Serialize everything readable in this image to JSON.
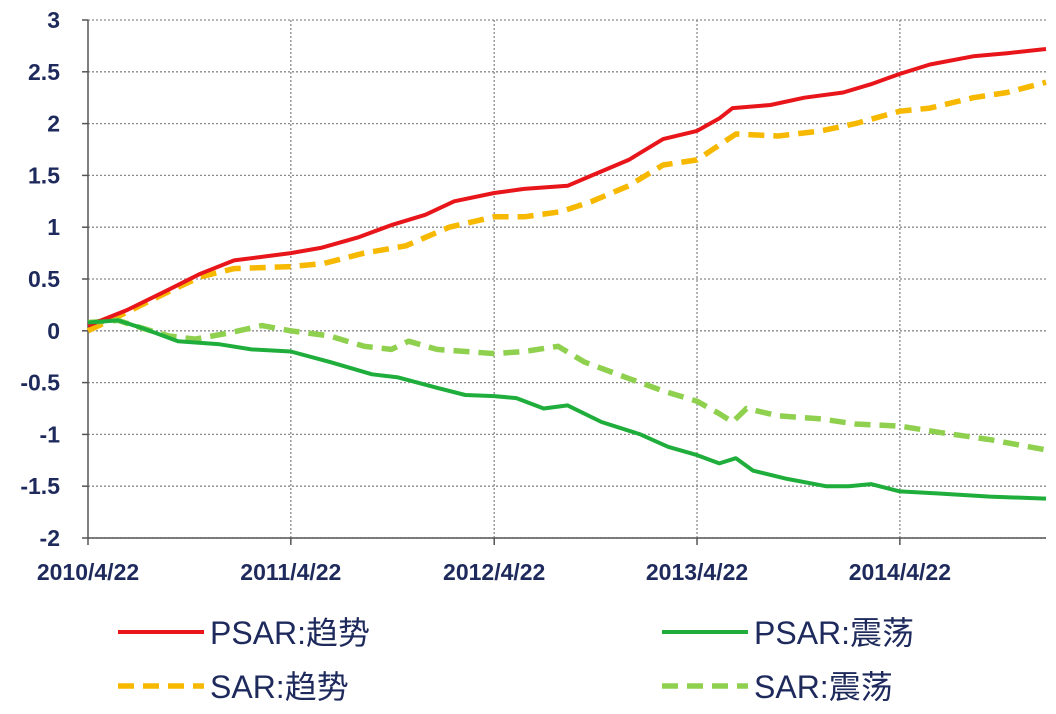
{
  "chart_data": {
    "type": "line",
    "title": "",
    "xlabel": "",
    "ylabel": "",
    "ylim": [
      -2,
      3
    ],
    "yticks": [
      "3",
      "2.5",
      "2",
      "1.5",
      "1",
      "0.5",
      "0",
      "-0.5",
      "-1",
      "-1.5",
      "-2"
    ],
    "xlim": [
      "2010-04-22",
      "2015-01-10"
    ],
    "xticks": [
      {
        "date": "2010-04-22",
        "label": "2010/4/22"
      },
      {
        "date": "2011-04-22",
        "label": "2011/4/22"
      },
      {
        "date": "2012-04-22",
        "label": "2012/4/22"
      },
      {
        "date": "2013-04-22",
        "label": "2013/4/22"
      },
      {
        "date": "2014-04-22",
        "label": "2014/4/22"
      }
    ],
    "grid": true,
    "legend_position": "bottom",
    "series": [
      {
        "name": "PSAR:趋势",
        "color": "#e8161b",
        "style": "solid",
        "points": [
          [
            "2010-04-22",
            0.05
          ],
          [
            "2010-07-01",
            0.2
          ],
          [
            "2010-09-15",
            0.4
          ],
          [
            "2010-11-10",
            0.55
          ],
          [
            "2011-01-10",
            0.68
          ],
          [
            "2011-04-22",
            0.75
          ],
          [
            "2011-06-15",
            0.8
          ],
          [
            "2011-08-20",
            0.9
          ],
          [
            "2011-10-20",
            1.02
          ],
          [
            "2011-12-20",
            1.12
          ],
          [
            "2012-02-10",
            1.25
          ],
          [
            "2012-04-22",
            1.33
          ],
          [
            "2012-06-15",
            1.37
          ],
          [
            "2012-09-01",
            1.4
          ],
          [
            "2012-10-15",
            1.5
          ],
          [
            "2012-12-20",
            1.65
          ],
          [
            "2013-02-20",
            1.85
          ],
          [
            "2013-04-22",
            1.93
          ],
          [
            "2013-06-01",
            2.05
          ],
          [
            "2013-06-25",
            2.15
          ],
          [
            "2013-09-01",
            2.18
          ],
          [
            "2013-11-01",
            2.25
          ],
          [
            "2014-01-10",
            2.3
          ],
          [
            "2014-03-01",
            2.38
          ],
          [
            "2014-04-22",
            2.48
          ],
          [
            "2014-06-15",
            2.57
          ],
          [
            "2014-09-01",
            2.65
          ],
          [
            "2014-11-01",
            2.68
          ],
          [
            "2015-01-10",
            2.72
          ]
        ]
      },
      {
        "name": "PSAR:震荡",
        "color": "#1fae3c",
        "style": "solid",
        "points": [
          [
            "2010-04-22",
            0.08
          ],
          [
            "2010-06-15",
            0.1
          ],
          [
            "2010-08-01",
            0.02
          ],
          [
            "2010-10-01",
            -0.1
          ],
          [
            "2010-12-15",
            -0.13
          ],
          [
            "2011-02-10",
            -0.18
          ],
          [
            "2011-04-22",
            -0.2
          ],
          [
            "2011-07-01",
            -0.3
          ],
          [
            "2011-09-15",
            -0.42
          ],
          [
            "2011-11-01",
            -0.45
          ],
          [
            "2012-01-10",
            -0.55
          ],
          [
            "2012-03-01",
            -0.62
          ],
          [
            "2012-04-22",
            -0.63
          ],
          [
            "2012-06-01",
            -0.65
          ],
          [
            "2012-07-20",
            -0.75
          ],
          [
            "2012-09-01",
            -0.72
          ],
          [
            "2012-11-01",
            -0.88
          ],
          [
            "2013-01-10",
            -1.0
          ],
          [
            "2013-03-01",
            -1.12
          ],
          [
            "2013-04-22",
            -1.2
          ],
          [
            "2013-06-01",
            -1.28
          ],
          [
            "2013-07-01",
            -1.23
          ],
          [
            "2013-08-01",
            -1.35
          ],
          [
            "2013-10-01",
            -1.43
          ],
          [
            "2013-12-10",
            -1.5
          ],
          [
            "2014-01-20",
            -1.5
          ],
          [
            "2014-03-01",
            -1.48
          ],
          [
            "2014-04-22",
            -1.55
          ],
          [
            "2014-07-01",
            -1.57
          ],
          [
            "2014-10-01",
            -1.6
          ],
          [
            "2015-01-10",
            -1.62
          ]
        ]
      },
      {
        "name": "SAR:趋势",
        "color": "#f7b900",
        "style": "dashed",
        "points": [
          [
            "2010-04-22",
            0.0
          ],
          [
            "2010-07-01",
            0.18
          ],
          [
            "2010-09-15",
            0.38
          ],
          [
            "2010-11-10",
            0.52
          ],
          [
            "2011-01-10",
            0.6
          ],
          [
            "2011-04-22",
            0.62
          ],
          [
            "2011-06-20",
            0.65
          ],
          [
            "2011-09-01",
            0.75
          ],
          [
            "2011-11-15",
            0.82
          ],
          [
            "2012-02-01",
            1.0
          ],
          [
            "2012-04-22",
            1.1
          ],
          [
            "2012-06-15",
            1.1
          ],
          [
            "2012-08-20",
            1.15
          ],
          [
            "2012-10-15",
            1.25
          ],
          [
            "2012-12-20",
            1.4
          ],
          [
            "2013-02-20",
            1.6
          ],
          [
            "2013-04-22",
            1.65
          ],
          [
            "2013-05-20",
            1.75
          ],
          [
            "2013-07-01",
            1.9
          ],
          [
            "2013-09-15",
            1.88
          ],
          [
            "2013-12-01",
            1.93
          ],
          [
            "2014-02-01",
            2.0
          ],
          [
            "2014-04-22",
            2.12
          ],
          [
            "2014-06-15",
            2.15
          ],
          [
            "2014-09-01",
            2.25
          ],
          [
            "2014-11-01",
            2.3
          ],
          [
            "2015-01-10",
            2.4
          ]
        ]
      },
      {
        "name": "SAR:震荡",
        "color": "#8fd14f",
        "style": "dashed",
        "points": [
          [
            "2010-04-22",
            0.08
          ],
          [
            "2010-06-15",
            0.1
          ],
          [
            "2010-08-01",
            0.02
          ],
          [
            "2010-09-15",
            -0.05
          ],
          [
            "2010-11-01",
            -0.08
          ],
          [
            "2011-01-01",
            -0.02
          ],
          [
            "2011-03-01",
            0.05
          ],
          [
            "2011-04-22",
            0.0
          ],
          [
            "2011-07-01",
            -0.05
          ],
          [
            "2011-09-01",
            -0.15
          ],
          [
            "2011-10-20",
            -0.18
          ],
          [
            "2011-11-20",
            -0.1
          ],
          [
            "2012-01-10",
            -0.18
          ],
          [
            "2012-04-22",
            -0.22
          ],
          [
            "2012-06-15",
            -0.2
          ],
          [
            "2012-08-15",
            -0.15
          ],
          [
            "2012-10-01",
            -0.3
          ],
          [
            "2012-12-15",
            -0.45
          ],
          [
            "2013-02-20",
            -0.58
          ],
          [
            "2013-04-22",
            -0.68
          ],
          [
            "2013-06-01",
            -0.8
          ],
          [
            "2013-06-25",
            -0.88
          ],
          [
            "2013-07-20",
            -0.75
          ],
          [
            "2013-09-15",
            -0.82
          ],
          [
            "2013-12-01",
            -0.85
          ],
          [
            "2014-02-01",
            -0.9
          ],
          [
            "2014-04-22",
            -0.92
          ],
          [
            "2014-07-01",
            -0.98
          ],
          [
            "2014-10-01",
            -1.05
          ],
          [
            "2015-01-10",
            -1.15
          ]
        ]
      }
    ]
  }
}
